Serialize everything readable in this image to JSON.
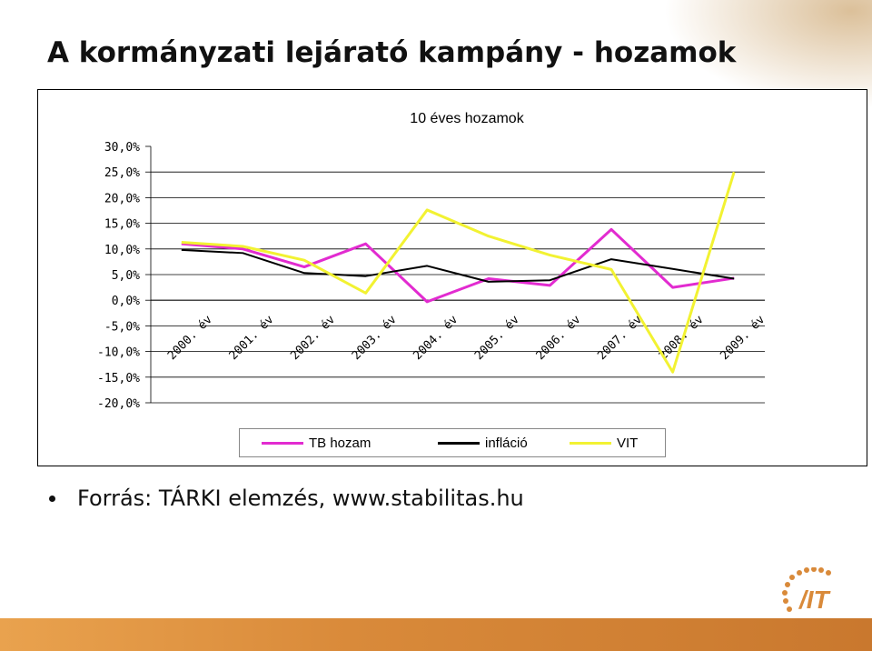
{
  "slide": {
    "title": "A kormányzati lejárató kampány - hozamok",
    "bullet": "Forrás: TÁRKI elemzés, www.stabilitas.hu",
    "logo_text": "/IT"
  },
  "chart_data": {
    "type": "line",
    "title": "10 éves hozamok",
    "categories": [
      "2000. év",
      "2001. év",
      "2002. év",
      "2003. év",
      "2004. év",
      "2005. év",
      "2006. év",
      "2007. év",
      "2008. év",
      "2009. év"
    ],
    "y_ticks": [
      "30,0%",
      "25,0%",
      "20,0%",
      "15,0%",
      "10,0%",
      "5,0%",
      "0,0%",
      "-5,0%",
      "-10,0%",
      "-15,0%",
      "-20,0%"
    ],
    "ylim": [
      -20,
      30
    ],
    "grid": "horizontal",
    "legend_position": "bottom",
    "series": [
      {
        "name": "TB hozam",
        "color": "#e22bd0",
        "values": [
          11.0,
          10.0,
          6.5,
          11.0,
          -0.3,
          4.2,
          2.9,
          13.8,
          2.5,
          4.3
        ]
      },
      {
        "name": "infláció",
        "color": "#000000",
        "values": [
          9.8,
          9.2,
          5.3,
          4.7,
          6.7,
          3.6,
          3.9,
          8.0,
          6.1,
          4.2
        ]
      },
      {
        "name": "VIT",
        "color": "#f2f232",
        "values": [
          11.3,
          10.5,
          7.8,
          1.4,
          17.6,
          12.5,
          8.8,
          6.0,
          -14.0,
          25.0
        ]
      }
    ]
  }
}
